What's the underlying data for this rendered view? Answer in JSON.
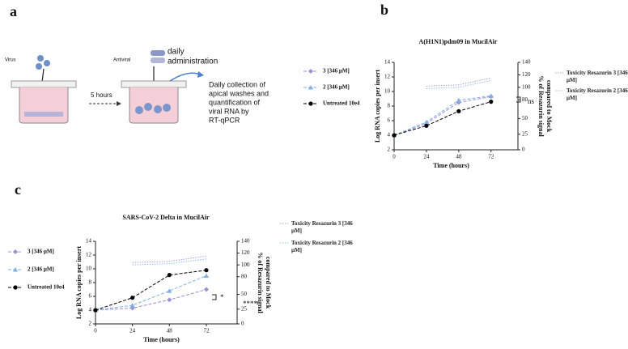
{
  "panels": [
    "a",
    "b",
    "c"
  ],
  "diagram": {
    "virus": "Virus",
    "antiviral": "Antiviral",
    "administration": [
      "daily",
      "administration"
    ],
    "delay": "5 hours",
    "collection": [
      "Daily collection of",
      "apical washes and",
      "quantification of",
      "viral RNA by",
      "RT-qPCR"
    ]
  },
  "chart_data": [
    {
      "type": "line",
      "title": "A(H1N1)pdm09 in MucilAir",
      "xlabel": "Time (hours)",
      "ylabel": "Log RNA copies per insert",
      "y2label": [
        "% of Resazurin signal",
        "compared to Mock"
      ],
      "x": [
        0,
        24,
        48,
        72
      ],
      "xlim": [
        0,
        92
      ],
      "xticks": [
        0,
        24,
        48,
        72
      ],
      "ylim": [
        2,
        14
      ],
      "yticks": [
        2,
        4,
        6,
        8,
        10,
        12,
        14
      ],
      "y2lim": [
        0,
        140
      ],
      "y2ticks": [
        0,
        25,
        50,
        80,
        100,
        120,
        140
      ],
      "annotations": [
        "ns"
      ],
      "series": [
        {
          "name": "3 [346 µM]",
          "color": "#9a8fd8",
          "marker": "diamond",
          "linestyle": "dashed",
          "values": [
            4,
            5.6,
            8.5,
            9.3
          ]
        },
        {
          "name": "2 [346 µM]",
          "color": "#7fb1e0",
          "marker": "triangle",
          "linestyle": "dashed",
          "values": [
            4,
            5.8,
            8.8,
            9.4
          ]
        },
        {
          "name": "Untreated 10e4",
          "color": "#000000",
          "marker": "circle",
          "linestyle": "dashed",
          "values": [
            4,
            5.3,
            7.3,
            8.6
          ]
        },
        {
          "name": "Toxicity Resazurin 3 [346 µM]",
          "color": "#a99de0",
          "marker": "none",
          "linestyle": "dotted",
          "axis": "y2",
          "values": [
            null,
            102,
            104,
            115
          ]
        },
        {
          "name": "Toxicity Resazurin 2 [346 µM]",
          "color": "#8cc0ea",
          "marker": "none",
          "linestyle": "dotted",
          "axis": "y2",
          "values": [
            null,
            98,
            100,
            111
          ]
        }
      ]
    },
    {
      "type": "line",
      "title": "SARS-CoV-2 Delta in MucilAir",
      "xlabel": "Time (hours)",
      "ylabel": "Log RNA copies per insert",
      "y2label": [
        "% of Resazurin signal",
        "compared to Mock"
      ],
      "x": [
        0,
        24,
        48,
        72
      ],
      "xlim": [
        0,
        92
      ],
      "xticks": [
        0,
        24,
        48,
        72
      ],
      "ylim": [
        2,
        14
      ],
      "yticks": [
        2,
        4,
        6,
        8,
        10,
        12,
        14
      ],
      "y2lim": [
        0,
        140
      ],
      "y2ticks": [
        0,
        25,
        50,
        80,
        100,
        120,
        140
      ],
      "annotations": [
        "*",
        "****"
      ],
      "series": [
        {
          "name": "3 [346 µM]",
          "color": "#9a8fd8",
          "marker": "diamond",
          "linestyle": "dashed",
          "values": [
            4,
            4.3,
            5.5,
            7
          ]
        },
        {
          "name": "2 [346 µM]",
          "color": "#7fb1e0",
          "marker": "triangle",
          "linestyle": "dashed",
          "values": [
            4,
            4.7,
            6.8,
            9
          ]
        },
        {
          "name": "Untreated 10e4",
          "color": "#000000",
          "marker": "circle",
          "linestyle": "dashed",
          "values": [
            4,
            5.8,
            9.1,
            9.8
          ]
        },
        {
          "name": "Toxicity Resazurin 3 [346 µM]",
          "color": "#a99de0",
          "marker": "none",
          "linestyle": "dotted",
          "axis": "y2",
          "values": [
            null,
            104,
            106,
            115
          ]
        },
        {
          "name": "Toxicity Resazurin 2 [346 µM]",
          "color": "#8cc0ea",
          "marker": "none",
          "linestyle": "dotted",
          "axis": "y2",
          "values": [
            null,
            100,
            102,
            110
          ]
        }
      ]
    }
  ]
}
